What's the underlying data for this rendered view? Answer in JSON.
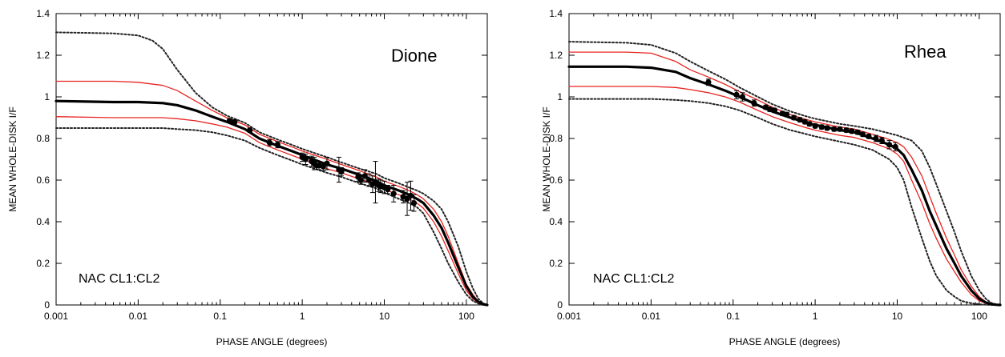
{
  "chart_data": [
    {
      "type": "line",
      "title": "",
      "annotation_name": "Dione",
      "annotation_filter": "NAC CL1:CL2",
      "xlabel": "PHASE ANGLE (degrees)",
      "ylabel": "MEAN WHOLE-DISK I/F",
      "xscale": "log",
      "xlim": [
        0.001,
        180
      ],
      "ylim": [
        0,
        1.4
      ],
      "xticks": [
        0.001,
        0.01,
        0.1,
        1,
        10,
        100
      ],
      "xtick_labels": [
        "0.001",
        "0.01",
        "0.1",
        "1",
        "10",
        "100"
      ],
      "yticks": [
        0,
        0.2,
        0.4,
        0.6,
        0.8,
        1,
        1.2,
        1.4
      ],
      "ytick_labels": [
        "0",
        "0.2",
        "0.4",
        "0.6",
        "0.8",
        "1",
        "1.2",
        "1.4"
      ],
      "series": [
        {
          "style": "bold-black",
          "color": "#000000",
          "x": [
            0.001,
            0.005,
            0.01,
            0.02,
            0.03,
            0.05,
            0.08,
            0.12,
            0.2,
            0.3,
            0.5,
            0.8,
            1,
            2,
            3,
            5,
            8,
            10,
            15,
            20,
            25,
            30,
            40,
            50,
            60,
            80,
            100,
            120,
            140,
            160,
            180
          ],
          "y": [
            0.98,
            0.975,
            0.975,
            0.97,
            0.96,
            0.935,
            0.905,
            0.88,
            0.845,
            0.8,
            0.765,
            0.735,
            0.72,
            0.675,
            0.655,
            0.625,
            0.595,
            0.575,
            0.55,
            0.53,
            0.51,
            0.49,
            0.43,
            0.37,
            0.3,
            0.18,
            0.09,
            0.04,
            0.015,
            0.003,
            0
          ]
        },
        {
          "style": "red-upper",
          "color": "#e8231f",
          "x": [
            0.001,
            0.005,
            0.01,
            0.02,
            0.03,
            0.05,
            0.08,
            0.12,
            0.2,
            0.3,
            0.5,
            0.8,
            1,
            2,
            3,
            5,
            8,
            10,
            15,
            20,
            25,
            30,
            40,
            50,
            60,
            80,
            100,
            120,
            140,
            160,
            180
          ],
          "y": [
            1.075,
            1.075,
            1.07,
            1.055,
            1.03,
            0.98,
            0.935,
            0.9,
            0.865,
            0.82,
            0.785,
            0.755,
            0.74,
            0.7,
            0.675,
            0.645,
            0.615,
            0.595,
            0.57,
            0.55,
            0.53,
            0.51,
            0.46,
            0.4,
            0.33,
            0.2,
            0.1,
            0.05,
            0.018,
            0.004,
            0
          ]
        },
        {
          "style": "red-lower",
          "color": "#e8231f",
          "x": [
            0.001,
            0.005,
            0.01,
            0.02,
            0.03,
            0.05,
            0.08,
            0.12,
            0.2,
            0.3,
            0.5,
            0.8,
            1,
            2,
            3,
            5,
            8,
            10,
            15,
            20,
            25,
            30,
            40,
            50,
            60,
            80,
            100,
            120,
            140,
            160,
            180
          ],
          "y": [
            0.905,
            0.9,
            0.9,
            0.9,
            0.895,
            0.885,
            0.87,
            0.855,
            0.825,
            0.78,
            0.745,
            0.715,
            0.7,
            0.655,
            0.635,
            0.605,
            0.575,
            0.555,
            0.53,
            0.51,
            0.49,
            0.465,
            0.4,
            0.33,
            0.26,
            0.15,
            0.07,
            0.03,
            0.01,
            0.002,
            0
          ]
        },
        {
          "style": "dotted-upper",
          "color": "#222222",
          "x": [
            0.001,
            0.005,
            0.01,
            0.015,
            0.02,
            0.03,
            0.05,
            0.08,
            0.12,
            0.2,
            0.3,
            0.5,
            0.8,
            1,
            2,
            3,
            5,
            8,
            10,
            15,
            20,
            25,
            30,
            40,
            50,
            60,
            80,
            100,
            120,
            140,
            160,
            180
          ],
          "y": [
            1.31,
            1.305,
            1.295,
            1.27,
            1.23,
            1.13,
            1.02,
            0.95,
            0.91,
            0.875,
            0.83,
            0.795,
            0.765,
            0.75,
            0.71,
            0.685,
            0.655,
            0.63,
            0.61,
            0.585,
            0.565,
            0.55,
            0.535,
            0.5,
            0.46,
            0.4,
            0.28,
            0.16,
            0.08,
            0.03,
            0.008,
            0
          ]
        },
        {
          "style": "dotted-lower",
          "color": "#222222",
          "x": [
            0.001,
            0.005,
            0.01,
            0.02,
            0.03,
            0.05,
            0.08,
            0.12,
            0.2,
            0.3,
            0.5,
            0.8,
            1,
            2,
            3,
            5,
            8,
            10,
            15,
            20,
            25,
            30,
            40,
            50,
            60,
            80,
            100,
            120,
            140,
            160,
            180
          ],
          "y": [
            0.85,
            0.85,
            0.85,
            0.85,
            0.845,
            0.84,
            0.83,
            0.815,
            0.79,
            0.755,
            0.72,
            0.69,
            0.675,
            0.635,
            0.615,
            0.585,
            0.56,
            0.54,
            0.51,
            0.49,
            0.47,
            0.44,
            0.35,
            0.27,
            0.2,
            0.11,
            0.05,
            0.02,
            0.007,
            0.002,
            0
          ]
        }
      ],
      "points": {
        "x": [
          0.13,
          0.15,
          0.23,
          0.4,
          0.5,
          1.0,
          1.1,
          1.3,
          1.4,
          1.5,
          1.6,
          1.8,
          2.0,
          2.8,
          3.0,
          4.8,
          5.2,
          5.8,
          6.5,
          7.2,
          7.8,
          8.5,
          9.0,
          10.0,
          11.0,
          13.0,
          17.0,
          19.0,
          21.0,
          23.0
        ],
        "y": [
          0.885,
          0.88,
          0.84,
          0.78,
          0.77,
          0.71,
          0.7,
          0.69,
          0.68,
          0.67,
          0.67,
          0.665,
          0.68,
          0.65,
          0.64,
          0.615,
          0.6,
          0.62,
          0.6,
          0.58,
          0.59,
          0.575,
          0.57,
          0.565,
          0.555,
          0.535,
          0.52,
          0.51,
          0.525,
          0.49
        ],
        "err": [
          0.01,
          0.01,
          0.01,
          0.015,
          0.015,
          0.02,
          0.025,
          0.025,
          0.03,
          0.02,
          0.02,
          0.02,
          0.03,
          0.06,
          0.02,
          0.02,
          0.02,
          0.03,
          0.03,
          0.04,
          0.1,
          0.03,
          0.03,
          0.03,
          0.02,
          0.04,
          0.03,
          0.08,
          0.07,
          0.04
        ]
      }
    },
    {
      "type": "line",
      "title": "",
      "annotation_name": "Rhea",
      "annotation_filter": "NAC CL1:CL2",
      "xlabel": "PHASE ANGLE (degrees)",
      "ylabel": "MEAN WHOLE-DISK I/F",
      "xscale": "log",
      "xlim": [
        0.001,
        180
      ],
      "ylim": [
        0,
        1.4
      ],
      "xticks": [
        0.001,
        0.01,
        0.1,
        1,
        10,
        100
      ],
      "xtick_labels": [
        "0.001",
        "0.01",
        "0.1",
        "1",
        "10",
        "100"
      ],
      "yticks": [
        0,
        0.2,
        0.4,
        0.6,
        0.8,
        1,
        1.2,
        1.4
      ],
      "ytick_labels": [
        "0",
        "0.2",
        "0.4",
        "0.6",
        "0.8",
        "1",
        "1.2",
        "1.4"
      ],
      "series": [
        {
          "style": "bold-black",
          "color": "#000000",
          "x": [
            0.001,
            0.005,
            0.01,
            0.02,
            0.03,
            0.05,
            0.08,
            0.12,
            0.2,
            0.3,
            0.5,
            0.8,
            1,
            2,
            3,
            5,
            8,
            10,
            12,
            15,
            20,
            25,
            30,
            40,
            50,
            60,
            80,
            100,
            120,
            140,
            160,
            180
          ],
          "y": [
            1.145,
            1.145,
            1.14,
            1.12,
            1.09,
            1.06,
            1.03,
            1.0,
            0.96,
            0.93,
            0.9,
            0.875,
            0.865,
            0.84,
            0.83,
            0.8,
            0.77,
            0.75,
            0.72,
            0.65,
            0.55,
            0.45,
            0.38,
            0.27,
            0.2,
            0.14,
            0.07,
            0.03,
            0.012,
            0.004,
            0.001,
            0
          ]
        },
        {
          "style": "red-upper",
          "color": "#e8231f",
          "x": [
            0.001,
            0.005,
            0.01,
            0.02,
            0.03,
            0.05,
            0.08,
            0.12,
            0.2,
            0.3,
            0.5,
            0.8,
            1,
            2,
            3,
            5,
            8,
            10,
            12,
            15,
            20,
            25,
            30,
            40,
            50,
            60,
            80,
            100,
            120,
            140,
            160,
            180
          ],
          "y": [
            1.215,
            1.215,
            1.21,
            1.17,
            1.13,
            1.095,
            1.06,
            1.025,
            0.985,
            0.95,
            0.915,
            0.89,
            0.88,
            0.855,
            0.845,
            0.82,
            0.795,
            0.78,
            0.76,
            0.71,
            0.62,
            0.52,
            0.44,
            0.32,
            0.24,
            0.17,
            0.09,
            0.04,
            0.015,
            0.005,
            0.001,
            0
          ]
        },
        {
          "style": "red-lower",
          "color": "#e8231f",
          "x": [
            0.001,
            0.005,
            0.01,
            0.02,
            0.03,
            0.05,
            0.08,
            0.12,
            0.2,
            0.3,
            0.5,
            0.8,
            1,
            2,
            3,
            5,
            8,
            10,
            12,
            15,
            20,
            25,
            30,
            40,
            50,
            60,
            80,
            100,
            120,
            140,
            160,
            180
          ],
          "y": [
            1.05,
            1.05,
            1.05,
            1.045,
            1.035,
            1.02,
            1.0,
            0.975,
            0.935,
            0.905,
            0.875,
            0.85,
            0.84,
            0.815,
            0.805,
            0.78,
            0.75,
            0.725,
            0.69,
            0.6,
            0.49,
            0.39,
            0.32,
            0.22,
            0.16,
            0.11,
            0.05,
            0.02,
            0.008,
            0.002,
            0.001,
            0
          ]
        },
        {
          "style": "dotted-upper",
          "color": "#222222",
          "x": [
            0.001,
            0.005,
            0.01,
            0.02,
            0.03,
            0.05,
            0.08,
            0.12,
            0.2,
            0.3,
            0.5,
            0.8,
            1,
            2,
            3,
            5,
            8,
            10,
            15,
            20,
            25,
            30,
            40,
            50,
            60,
            80,
            100,
            120,
            140,
            160,
            180
          ],
          "y": [
            1.265,
            1.26,
            1.25,
            1.21,
            1.17,
            1.125,
            1.085,
            1.045,
            1.0,
            0.965,
            0.93,
            0.905,
            0.895,
            0.87,
            0.86,
            0.845,
            0.825,
            0.815,
            0.79,
            0.74,
            0.66,
            0.58,
            0.45,
            0.35,
            0.26,
            0.14,
            0.07,
            0.03,
            0.01,
            0.003,
            0
          ]
        },
        {
          "style": "dotted-lower",
          "color": "#222222",
          "x": [
            0.001,
            0.005,
            0.01,
            0.02,
            0.03,
            0.05,
            0.08,
            0.12,
            0.2,
            0.3,
            0.5,
            0.8,
            1,
            2,
            3,
            5,
            8,
            10,
            12,
            15,
            20,
            25,
            30,
            40,
            50,
            60,
            80,
            100,
            120,
            140,
            160,
            180
          ],
          "y": [
            0.99,
            0.99,
            0.99,
            0.985,
            0.98,
            0.97,
            0.955,
            0.935,
            0.9,
            0.87,
            0.84,
            0.82,
            0.81,
            0.785,
            0.77,
            0.745,
            0.7,
            0.66,
            0.6,
            0.47,
            0.32,
            0.21,
            0.14,
            0.07,
            0.04,
            0.02,
            0.008,
            0.003,
            0.001,
            0.0005,
            0,
            0
          ]
        }
      ],
      "points": {
        "x": [
          0.05,
          0.11,
          0.13,
          0.18,
          0.25,
          0.28,
          0.32,
          0.4,
          0.45,
          0.55,
          0.65,
          0.75,
          0.85,
          1.0,
          1.2,
          1.4,
          1.7,
          2.0,
          2.4,
          2.8,
          3.3,
          3.8,
          4.5,
          5.5,
          6.5,
          8.0,
          9.5
        ],
        "y": [
          1.07,
          1.01,
          1.0,
          0.97,
          0.95,
          0.94,
          0.935,
          0.92,
          0.915,
          0.9,
          0.89,
          0.88,
          0.87,
          0.86,
          0.855,
          0.85,
          0.845,
          0.845,
          0.84,
          0.835,
          0.83,
          0.82,
          0.81,
          0.8,
          0.79,
          0.77,
          0.76
        ],
        "err": [
          0.015,
          0.02,
          0.02,
          0.015,
          0.01,
          0.01,
          0.01,
          0.01,
          0.01,
          0.01,
          0.01,
          0.01,
          0.01,
          0.01,
          0.01,
          0.01,
          0.01,
          0.01,
          0.01,
          0.01,
          0.01,
          0.01,
          0.01,
          0.015,
          0.015,
          0.02,
          0.02
        ]
      }
    }
  ]
}
